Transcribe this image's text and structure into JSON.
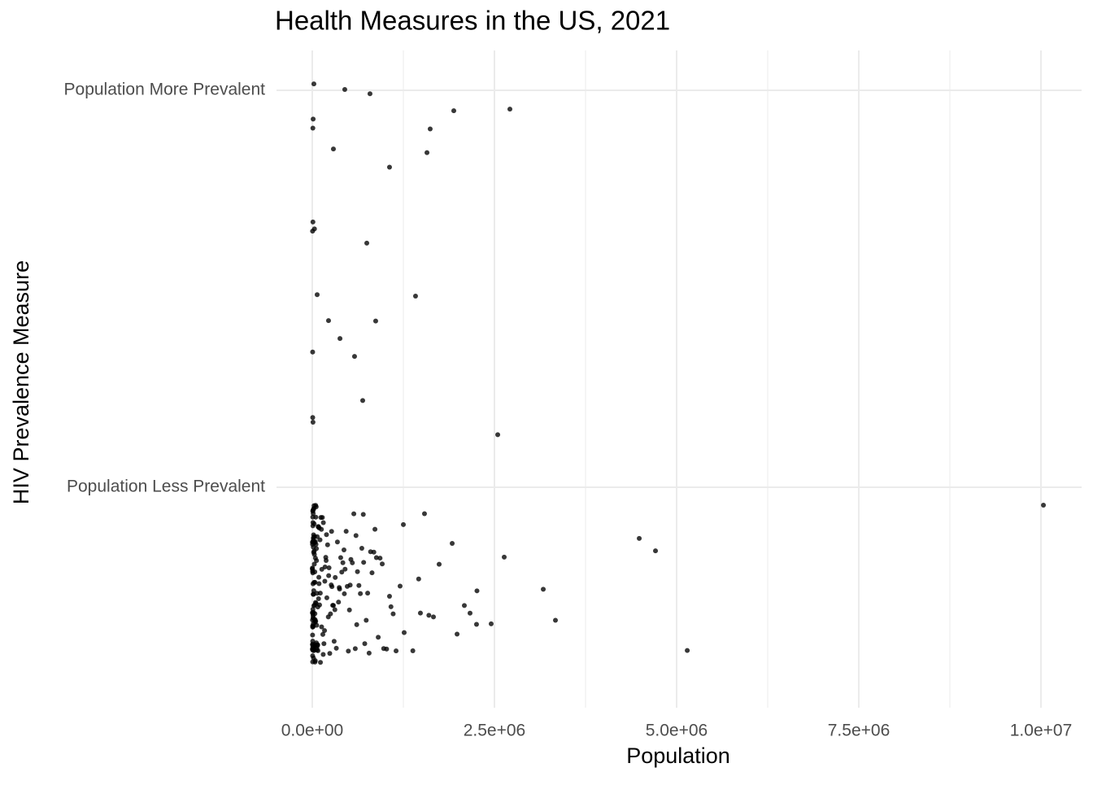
{
  "chart_data": {
    "type": "strip",
    "title": "Health Measures in the US, 2021",
    "x_label": "Population",
    "y_label": "HIV Prevalence Measure",
    "xlim": [
      -491000,
      10558000
    ],
    "xticks": [
      {
        "value": 0,
        "label": "0.0e+00"
      },
      {
        "value": 2500000,
        "label": "2.5e+06"
      },
      {
        "value": 5000000,
        "label": "5.0e+06"
      },
      {
        "value": 7500000,
        "label": "7.5e+06"
      },
      {
        "value": 10000000,
        "label": "1.0e+07"
      }
    ],
    "grid": true,
    "color": "#000000",
    "groups": [
      {
        "category": "Population Less Prevalent",
        "x": [
          10034000,
          5146000,
          4710000,
          4487000,
          3337000,
          3170000,
          2634000,
          2455000,
          2254000,
          2260000,
          2165000,
          2087000,
          1987000,
          1920000,
          1741000,
          1663000,
          1600000,
          1540000,
          1484000,
          1460000,
          1380000,
          1261000,
          1250000,
          1205000,
          1150000,
          1110000,
          1080000,
          1060000,
          1020000,
          980000,
          960000,
          930000,
          905000,
          880000,
          860000,
          845000,
          820000,
          800000,
          780000,
          760000,
          740000,
          720000,
          700000,
          680000,
          660000,
          640000,
          620000,
          600000,
          590000,
          570000,
          550000,
          530000,
          510000,
          495000,
          480000,
          465000,
          450000,
          435000,
          420000,
          405000,
          390000,
          375000,
          360000,
          345000,
          330000,
          315000,
          300000,
          290000,
          280000,
          270000,
          260000,
          250000,
          240000,
          230000,
          220000,
          210000,
          200000,
          190000,
          185000,
          175000,
          168000,
          160000,
          152000,
          145000,
          138000,
          131000,
          125000,
          118000,
          112000,
          106000,
          100000,
          95000,
          90000,
          86000,
          82000,
          78000,
          74000,
          70000,
          66000,
          63000,
          60000,
          57000,
          54000,
          51000,
          48000,
          46000,
          44000,
          42000,
          40000,
          38000,
          36000,
          34000,
          32000,
          30000,
          28000,
          27000,
          26000,
          25000,
          24000,
          23000,
          22000,
          21000,
          20000,
          19000,
          18000,
          17000,
          16000,
          15000,
          14500,
          14000,
          13500,
          13000,
          12500,
          12000,
          11500,
          11000,
          10500,
          10000,
          9500,
          9000,
          8500,
          8000,
          7500,
          7000,
          6500,
          6000,
          5500,
          5000,
          4500,
          4000,
          3500,
          3000,
          2500,
          2000,
          1500,
          1000,
          72000,
          65000,
          58000,
          52000,
          47000,
          43000,
          39000,
          35000,
          31000,
          29000,
          41000,
          37000,
          33000,
          56000,
          61000,
          68000,
          76000,
          84000,
          93000,
          110000,
          128000,
          150000,
          172000,
          195000,
          225000,
          265000,
          310000,
          370000,
          440000,
          520000,
          610000,
          705000,
          15200,
          16800,
          18400,
          20500,
          22600,
          24700,
          26900,
          9800,
          8700,
          7600,
          6400,
          5300,
          4200,
          3100,
          2200,
          1200
        ]
      },
      {
        "category": "Population More Prevalent",
        "x": [
          10000,
          446000,
          5000,
          67000,
          380000,
          692000,
          792000,
          1618000,
          2712000,
          12000,
          1942000,
          22000,
          1417000,
          6000,
          290000,
          8000,
          1574000,
          870000,
          1060000,
          748000,
          2545000,
          4000,
          223000,
          580000,
          9000,
          30000
        ]
      }
    ]
  }
}
